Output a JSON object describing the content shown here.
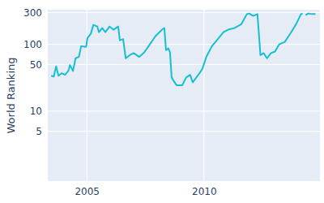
{
  "chart_data": {
    "type": "line",
    "y_label": "World Ranking",
    "log": "y",
    "grid": true,
    "color": "#17becf",
    "x": [
      2003.48,
      2003.59,
      2003.69,
      2003.79,
      2003.93,
      2004.07,
      2004.21,
      2004.28,
      2004.41,
      2004.52,
      2004.66,
      2004.76,
      2004.97,
      2005.03,
      2005.17,
      2005.28,
      2005.45,
      2005.52,
      2005.66,
      2005.79,
      2005.97,
      2006.14,
      2006.34,
      2006.41,
      2006.55,
      2006.66,
      2006.83,
      2007.0,
      2007.24,
      2007.45,
      2007.69,
      2007.93,
      2008.21,
      2008.31,
      2008.38,
      2008.48,
      2008.55,
      2008.62,
      2008.72,
      2008.83,
      2009.07,
      2009.24,
      2009.41,
      2009.52,
      2009.76,
      2009.93,
      2010.1,
      2010.34,
      2010.55,
      2010.83,
      2011.03,
      2011.31,
      2011.59,
      2011.83,
      2011.93,
      2012.1,
      2012.28,
      2012.34,
      2012.41,
      2012.55,
      2012.69,
      2012.86,
      2013.03,
      2013.21,
      2013.45,
      2013.72,
      2013.93,
      2014.14,
      2014.21,
      2014.28,
      2014.34,
      2014.45,
      2014.62,
      2014.76
    ],
    "values": [
      34,
      33,
      47,
      34,
      37,
      35,
      40,
      49,
      40,
      62,
      65,
      94,
      92,
      125,
      144,
      196,
      185,
      152,
      176,
      152,
      185,
      166,
      185,
      115,
      120,
      62,
      69,
      74,
      65,
      76,
      100,
      133,
      166,
      176,
      82,
      87,
      76,
      32,
      28,
      24.5,
      24.5,
      32,
      35,
      27,
      35,
      43,
      65,
      94,
      115,
      152,
      166,
      176,
      200,
      284,
      290,
      267,
      284,
      152,
      69,
      74,
      62,
      74,
      78,
      100,
      109,
      152,
      200,
      284,
      290,
      null,
      274,
      290,
      284,
      284
    ],
    "xlim": [
      2003.3,
      2014.95
    ],
    "xticks": [
      2005,
      2010
    ],
    "ylim": [
      0.9,
      330
    ],
    "yticks": [
      5,
      10,
      50,
      100,
      300
    ]
  }
}
